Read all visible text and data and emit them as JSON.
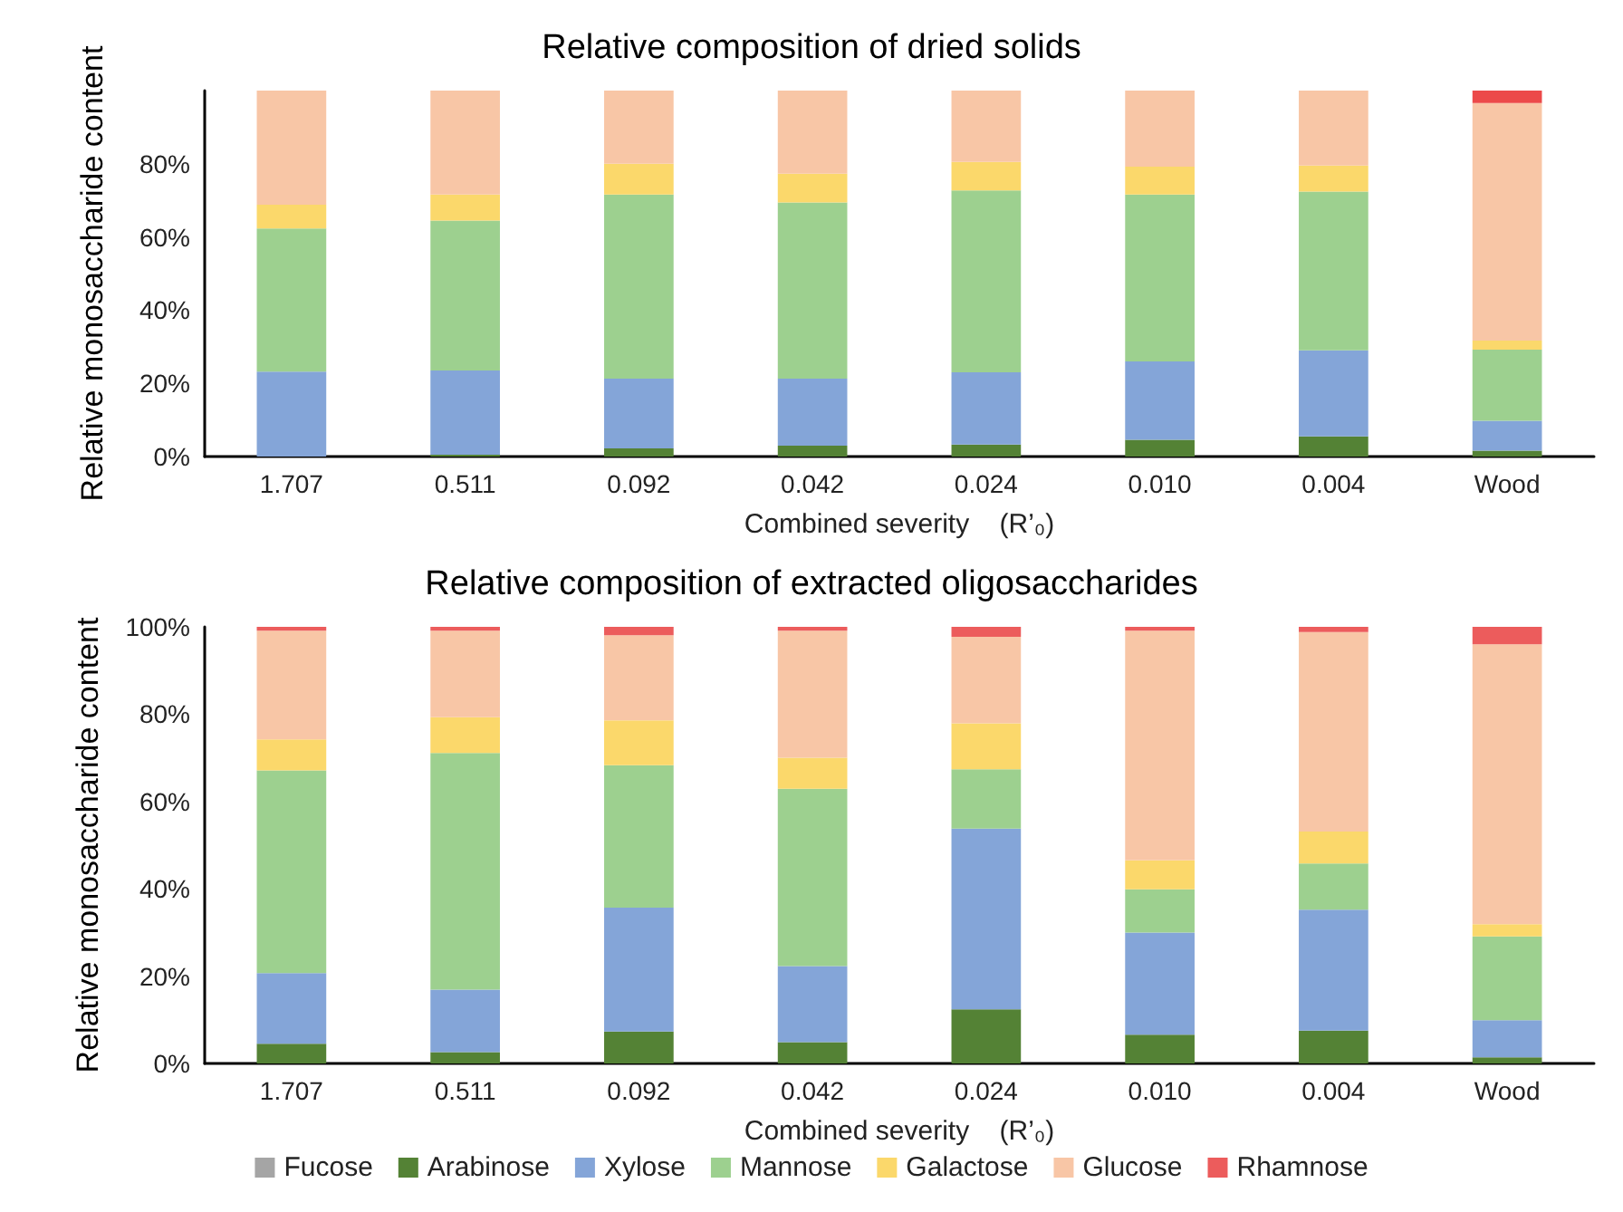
{
  "chart_data": [
    {
      "type": "bar",
      "title": "Relative composition of dried solids",
      "xlabel": "Combined severity    (R’₀)",
      "ylabel": "Relative monosaccharide content",
      "stacked": true,
      "legend": false,
      "grid": false,
      "categories": [
        "1.707",
        "0.511",
        "0.092",
        "0.042",
        "0.024",
        "0.010",
        "0.004",
        "Wood"
      ],
      "ylim": [
        0,
        100
      ],
      "yticks": [
        {
          "value": 0,
          "label": "0%"
        },
        {
          "value": 20,
          "label": "20%"
        },
        {
          "value": 40,
          "label": "40%"
        },
        {
          "value": 60,
          "label": "60%"
        },
        {
          "value": 80,
          "label": "80%"
        }
      ],
      "series": [
        {
          "color": "#a5a5a5",
          "values": [
            0,
            0,
            0,
            0,
            0,
            0,
            0,
            0
          ]
        },
        {
          "color": "#548235",
          "values": [
            0,
            0.5,
            2.2,
            3,
            3.3,
            4.6,
            5.5,
            1.6
          ]
        },
        {
          "color": "#84a5d8",
          "values": [
            23.2,
            23,
            19.1,
            18.3,
            19.7,
            21.4,
            23.5,
            8.2
          ]
        },
        {
          "color": "#9dd08f",
          "values": [
            39.1,
            41,
            50.3,
            48.1,
            49.7,
            45.6,
            43.4,
            19.4
          ]
        },
        {
          "color": "#fbd86b",
          "values": [
            6.5,
            7.1,
            8.4,
            7.9,
            7.8,
            7.6,
            7.1,
            2.5
          ]
        },
        {
          "color": "#f8c6a6",
          "values": [
            31.2,
            28.4,
            20,
            22.7,
            19.5,
            20.8,
            20.5,
            64.9
          ]
        },
        {
          "color": "#ec4a4a",
          "values": [
            0,
            0,
            0,
            0,
            0,
            0,
            0,
            3.4
          ]
        }
      ]
    },
    {
      "type": "bar",
      "title": "Relative composition of extracted oligosaccharides",
      "xlabel": "Combined severity    (R’₀)",
      "ylabel": "Relative monosaccharide content",
      "stacked": true,
      "legend": "bottom",
      "grid": false,
      "categories": [
        "1.707",
        "0.511",
        "0.092",
        "0.042",
        "0.024",
        "0.010",
        "0.004",
        "Wood"
      ],
      "ylim": [
        0,
        100
      ],
      "yticks": [
        {
          "value": 0,
          "label": "0%"
        },
        {
          "value": 20,
          "label": "20%"
        },
        {
          "value": 40,
          "label": "40%"
        },
        {
          "value": 60,
          "label": "60%"
        },
        {
          "value": 80,
          "label": "80%"
        },
        {
          "value": 100,
          "label": "100%"
        }
      ],
      "series": [
        {
          "name": "Fucose",
          "color": "#a5a5a5",
          "values": [
            0,
            0,
            0,
            0,
            0,
            0,
            0,
            0
          ]
        },
        {
          "name": "Arabinose",
          "color": "#548235",
          "values": [
            4.5,
            2.6,
            7.3,
            4.9,
            12.4,
            6.6,
            7.5,
            1.4
          ]
        },
        {
          "name": "Xylose",
          "color": "#84a5d8",
          "values": [
            16.2,
            14.3,
            28.4,
            17.4,
            41.4,
            23.4,
            27.7,
            8.5
          ]
        },
        {
          "name": "Mannose",
          "color": "#9dd08f",
          "values": [
            46.4,
            54.2,
            32.6,
            40.6,
            13.6,
            9.9,
            10.6,
            19.2
          ]
        },
        {
          "name": "Galactose",
          "color": "#fbd86b",
          "values": [
            7.1,
            8.2,
            10.3,
            7.1,
            10.5,
            6.6,
            7.3,
            2.8
          ]
        },
        {
          "name": "Glucose",
          "color": "#f8c6a6",
          "values": [
            24.9,
            19.8,
            19.5,
            29.1,
            19.8,
            52.6,
            45.7,
            64.1
          ]
        },
        {
          "name": "Rhamnose",
          "color": "#ec5c5c",
          "values": [
            0.9,
            0.9,
            1.9,
            0.9,
            2.3,
            0.9,
            1.2,
            4
          ]
        }
      ]
    }
  ]
}
